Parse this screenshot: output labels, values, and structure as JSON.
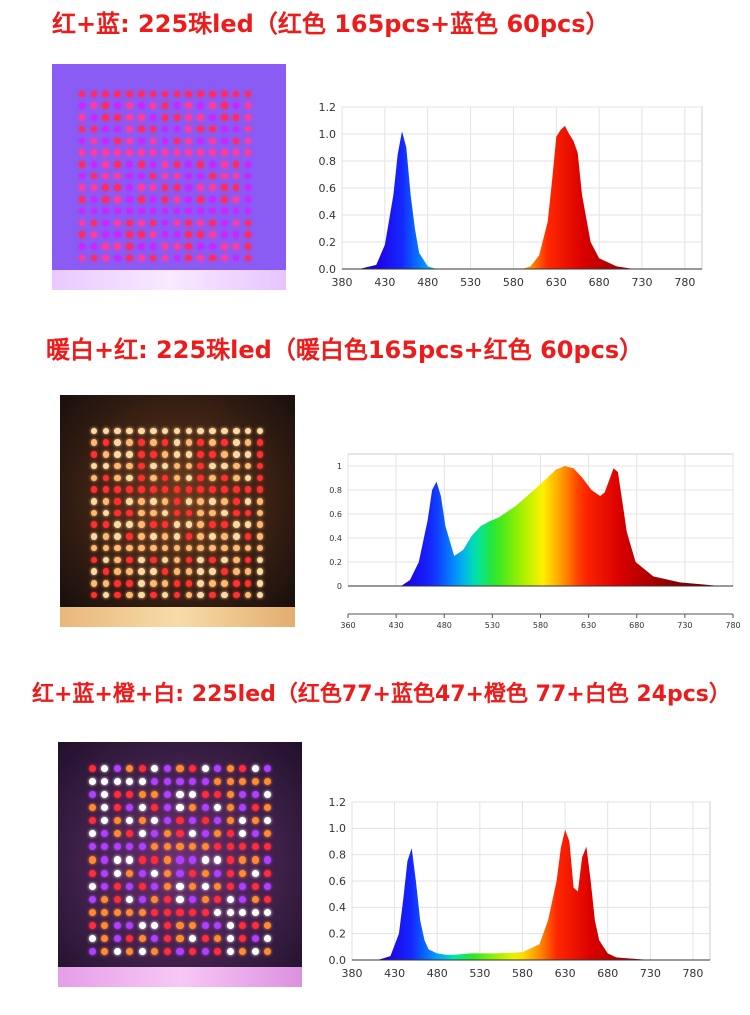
{
  "sections": [
    {
      "title": "红+蓝: 225珠led（红色 165pcs+蓝色 60pcs）",
      "panel_colors": [
        "#ff2a64",
        "#c828ff",
        "#ff3aa0"
      ],
      "panel_bg": "#6a3cf0"
    },
    {
      "title": "暖白+红: 225珠led（暖白色165pcs+红色 60pcs）",
      "panel_colors": [
        "#ffd9a0",
        "#ffb870",
        "#ff3030"
      ],
      "panel_bg": "#4a2a18"
    },
    {
      "title": "红+蓝+橙+白: 225led（红色77+蓝色47+橙色 77+白色 24pcs）",
      "panel_colors": [
        "#ff2c3c",
        "#ff8a30",
        "#b040ff",
        "#ffffff"
      ],
      "panel_bg": "#3a2040"
    }
  ],
  "chart_data": [
    {
      "type": "area",
      "title": "",
      "xlabel": "",
      "ylabel": "",
      "xlim": [
        380,
        800
      ],
      "ylim": [
        0,
        1.2
      ],
      "x_ticks": [
        "380",
        "430",
        "480",
        "530",
        "580",
        "630",
        "680",
        "730",
        "780"
      ],
      "y_ticks": [
        "0.0",
        "0.2",
        "0.4",
        "0.6",
        "0.8",
        "1.0",
        "1.2"
      ],
      "grid": true,
      "series": [
        {
          "x": [
            400,
            420,
            430,
            440,
            445,
            450,
            455,
            460,
            465,
            470,
            480,
            490
          ],
          "y": [
            0.0,
            0.03,
            0.18,
            0.55,
            0.85,
            1.02,
            0.9,
            0.55,
            0.3,
            0.12,
            0.02,
            0.0
          ]
        },
        {
          "x": [
            590,
            600,
            610,
            620,
            625,
            630,
            635,
            640,
            645,
            650,
            655,
            660,
            670,
            680,
            700,
            720
          ],
          "y": [
            0.0,
            0.02,
            0.1,
            0.35,
            0.65,
            0.98,
            1.03,
            1.06,
            1.0,
            0.95,
            0.86,
            0.55,
            0.2,
            0.08,
            0.02,
            0.0
          ]
        }
      ]
    },
    {
      "type": "area",
      "title": "",
      "xlabel": "",
      "ylabel": "",
      "xlim": [
        355,
        790
      ],
      "ylim": [
        0,
        1.1
      ],
      "x_ticks": [
        "360",
        "430",
        "480",
        "530",
        "580",
        "630",
        "680",
        "730",
        "780"
      ],
      "y_ticks": [
        "0",
        "0.2",
        "0.4",
        "0.6",
        "0.8",
        "1"
      ],
      "grid": true,
      "series": [
        {
          "x": [
            415,
            425,
            435,
            445,
            450,
            455,
            460,
            465,
            475,
            485,
            495,
            505,
            515,
            525,
            545,
            565,
            580,
            590,
            600,
            610,
            620,
            630,
            640,
            645,
            650,
            655,
            660,
            665,
            670,
            680,
            700,
            730,
            760,
            775
          ],
          "y": [
            0.0,
            0.05,
            0.2,
            0.55,
            0.8,
            0.87,
            0.75,
            0.5,
            0.25,
            0.3,
            0.42,
            0.5,
            0.54,
            0.57,
            0.67,
            0.8,
            0.9,
            0.97,
            1.0,
            0.98,
            0.9,
            0.8,
            0.75,
            0.78,
            0.88,
            0.98,
            0.95,
            0.7,
            0.45,
            0.2,
            0.08,
            0.03,
            0.01,
            0.0
          ]
        }
      ]
    },
    {
      "type": "area",
      "title": "",
      "xlabel": "",
      "ylabel": "",
      "xlim": [
        380,
        800
      ],
      "ylim": [
        0,
        1.2
      ],
      "x_ticks": [
        "380",
        "430",
        "480",
        "530",
        "580",
        "630",
        "680",
        "730",
        "780"
      ],
      "y_ticks": [
        "0.0",
        "0.2",
        "0.4",
        "0.6",
        "0.8",
        "1.0",
        "1.2"
      ],
      "grid": true,
      "series": [
        {
          "x": [
            410,
            425,
            435,
            440,
            445,
            450,
            455,
            460,
            465,
            470,
            480,
            490,
            500,
            520,
            550,
            580,
            600,
            610,
            620,
            625,
            630,
            635,
            640,
            645,
            650,
            655,
            660,
            665,
            670,
            680,
            690,
            710,
            730
          ],
          "y": [
            0.0,
            0.03,
            0.2,
            0.45,
            0.75,
            0.85,
            0.6,
            0.3,
            0.15,
            0.08,
            0.05,
            0.04,
            0.04,
            0.05,
            0.05,
            0.06,
            0.12,
            0.3,
            0.6,
            0.85,
            0.99,
            0.9,
            0.55,
            0.52,
            0.78,
            0.86,
            0.6,
            0.3,
            0.15,
            0.05,
            0.02,
            0.01,
            0.0
          ]
        }
      ]
    }
  ]
}
